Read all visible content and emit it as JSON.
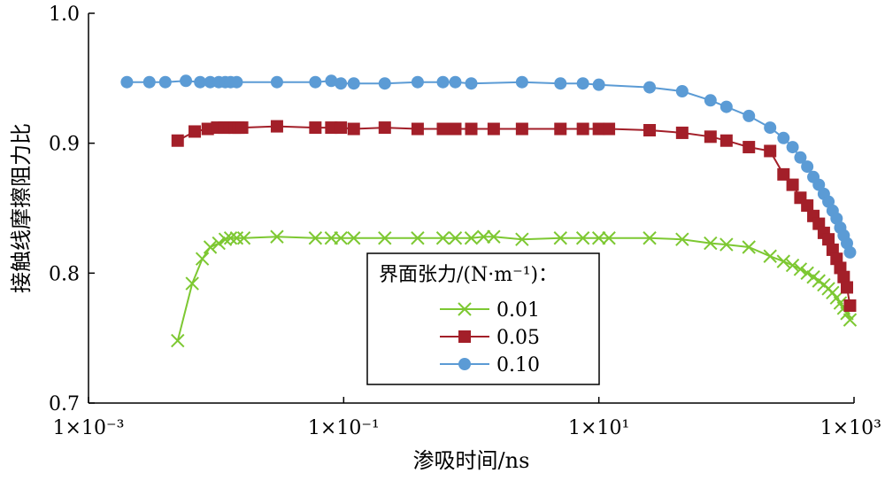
{
  "chart_data": {
    "type": "line",
    "x_scale": "log",
    "xlim": [
      0.001,
      1000
    ],
    "ylim": [
      0.7,
      1.0
    ],
    "xlabel": "渗吸时间/ns",
    "ylabel": "接触线摩擦阻力比",
    "x_tick_labels": [
      {
        "value": 0.001,
        "text": "1×10⁻³"
      },
      {
        "value": 0.1,
        "text": "1×10⁻¹"
      },
      {
        "value": 10,
        "text": "1×10¹"
      },
      {
        "value": 1000,
        "text": "1×10³"
      }
    ],
    "y_tick_labels": [
      {
        "value": 0.7,
        "text": "0.7"
      },
      {
        "value": 0.8,
        "text": "0.8"
      },
      {
        "value": 0.9,
        "text": "0.9"
      },
      {
        "value": 1.0,
        "text": "1.0"
      }
    ],
    "grid": false,
    "legend": {
      "title": "界面张力/(N·m⁻¹)：",
      "placement": "bottom-right-center"
    },
    "series": [
      {
        "name": "0.01",
        "color": "#7dc832",
        "marker": "x",
        "x": [
          0.005,
          0.0065,
          0.0078,
          0.009,
          0.0105,
          0.0118,
          0.013,
          0.0145,
          0.0165,
          0.03,
          0.06,
          0.08,
          0.095,
          0.12,
          0.21,
          0.38,
          0.6,
          0.75,
          1.0,
          1.25,
          1.5,
          2.5,
          5.0,
          7.5,
          10,
          12,
          25,
          45,
          75,
          100,
          150,
          220,
          280,
          330,
          380,
          430,
          480,
          530,
          580,
          630,
          680,
          730,
          780,
          830,
          880,
          930
        ],
        "y": [
          0.748,
          0.792,
          0.811,
          0.82,
          0.823,
          0.826,
          0.827,
          0.827,
          0.827,
          0.828,
          0.827,
          0.827,
          0.827,
          0.827,
          0.827,
          0.827,
          0.827,
          0.827,
          0.827,
          0.828,
          0.828,
          0.826,
          0.827,
          0.827,
          0.827,
          0.827,
          0.827,
          0.826,
          0.823,
          0.822,
          0.82,
          0.813,
          0.809,
          0.806,
          0.803,
          0.8,
          0.797,
          0.794,
          0.791,
          0.788,
          0.785,
          0.781,
          0.777,
          0.773,
          0.769,
          0.764
        ]
      },
      {
        "name": "0.05",
        "color": "#a31f29",
        "marker": "square",
        "x": [
          0.005,
          0.0068,
          0.0086,
          0.0102,
          0.0116,
          0.0128,
          0.014,
          0.015,
          0.016,
          0.03,
          0.06,
          0.08,
          0.095,
          0.12,
          0.21,
          0.38,
          0.6,
          0.75,
          1.0,
          1.5,
          2.5,
          5.0,
          7.5,
          10,
          12,
          25,
          45,
          75,
          100,
          150,
          220,
          280,
          330,
          380,
          430,
          480,
          530,
          580,
          630,
          680,
          730,
          780,
          830,
          880,
          930
        ],
        "y": [
          0.902,
          0.909,
          0.911,
          0.912,
          0.912,
          0.912,
          0.912,
          0.912,
          0.912,
          0.913,
          0.912,
          0.912,
          0.912,
          0.911,
          0.912,
          0.911,
          0.911,
          0.911,
          0.911,
          0.911,
          0.911,
          0.911,
          0.911,
          0.911,
          0.911,
          0.91,
          0.908,
          0.905,
          0.902,
          0.897,
          0.894,
          0.876,
          0.868,
          0.858,
          0.852,
          0.844,
          0.838,
          0.831,
          0.826,
          0.818,
          0.811,
          0.804,
          0.797,
          0.789,
          0.775
        ]
      },
      {
        "name": "0.10",
        "color": "#5b9bd5",
        "marker": "circle",
        "x": [
          0.002,
          0.003,
          0.004,
          0.0058,
          0.0075,
          0.009,
          0.0105,
          0.0118,
          0.013,
          0.0145,
          0.03,
          0.06,
          0.08,
          0.095,
          0.12,
          0.21,
          0.38,
          0.6,
          0.75,
          1.0,
          2.5,
          5.0,
          7.5,
          10,
          25,
          45,
          75,
          100,
          150,
          220,
          280,
          330,
          380,
          430,
          480,
          530,
          580,
          630,
          680,
          730,
          780,
          830,
          880,
          930
        ],
        "y": [
          0.947,
          0.947,
          0.947,
          0.948,
          0.947,
          0.947,
          0.947,
          0.947,
          0.947,
          0.947,
          0.947,
          0.947,
          0.948,
          0.946,
          0.946,
          0.946,
          0.947,
          0.947,
          0.947,
          0.946,
          0.947,
          0.946,
          0.946,
          0.945,
          0.943,
          0.94,
          0.933,
          0.928,
          0.921,
          0.912,
          0.904,
          0.897,
          0.889,
          0.882,
          0.874,
          0.868,
          0.861,
          0.855,
          0.848,
          0.842,
          0.835,
          0.829,
          0.823,
          0.816
        ]
      }
    ]
  }
}
